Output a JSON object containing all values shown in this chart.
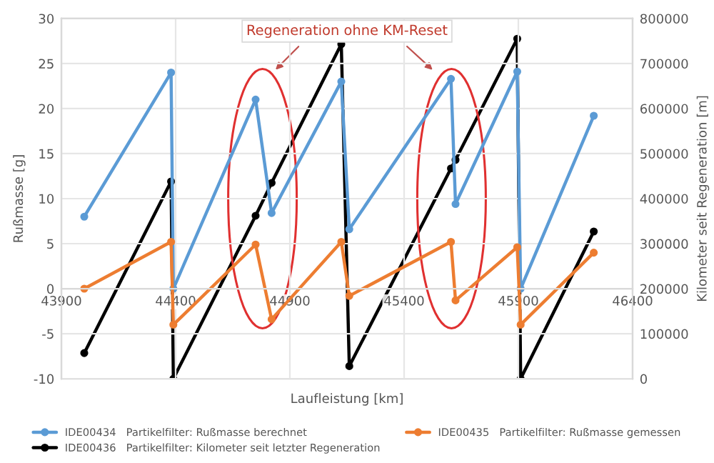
{
  "chart_data": {
    "type": "line",
    "xlabel": "Laufleistung [km]",
    "ylabel": "Rußmasse [g]",
    "y2label": "Kilometer seit Regeneration [m]",
    "annotations": [
      "Regeneration ohne KM-Reset"
    ],
    "x": [
      44000,
      44380,
      44390,
      44750,
      44820,
      45125,
      45160,
      45605,
      45625,
      45895,
      45910,
      46230
    ],
    "series": [
      {
        "name": "IDE00434   Partikelfilter: Rußmasse berechnet",
        "color": "#5b9bd5",
        "values": [
          8,
          24,
          0,
          21,
          8.4,
          23,
          6.6,
          23.3,
          9.4,
          24.1,
          0,
          19.2
        ]
      },
      {
        "name": "IDE00435   Partikelfilter: Rußmasse gemessen",
        "color": "#ed7d31",
        "values": [
          0,
          5.2,
          -4,
          4.9,
          -3.4,
          5.2,
          -0.8,
          5.2,
          -1.3,
          4.6,
          -4,
          4
        ]
      },
      {
        "name": "IDE00436   Partikelfilter: Kilometer seit letzter Regeneration",
        "color": "#000000",
        "axis": "y2",
        "values": [
          57000,
          438000,
          0,
          362000,
          435000,
          743000,
          28000,
          467000,
          486000,
          755000,
          0,
          327000
        ]
      }
    ],
    "xlim": [
      43900,
      46400
    ],
    "xticks": [
      43900,
      44400,
      44900,
      45400,
      45900,
      46400
    ],
    "ylim": [
      -10,
      30
    ],
    "yticks": [
      -10,
      -5,
      0,
      5,
      10,
      15,
      20,
      25,
      30
    ],
    "y2lim": [
      0,
      800000
    ],
    "y2ticks": [
      0,
      100000,
      200000,
      300000,
      400000,
      500000,
      600000,
      700000,
      800000
    ],
    "grid": true,
    "legend": "bottom",
    "marker": "circle",
    "line_style": "solid"
  }
}
